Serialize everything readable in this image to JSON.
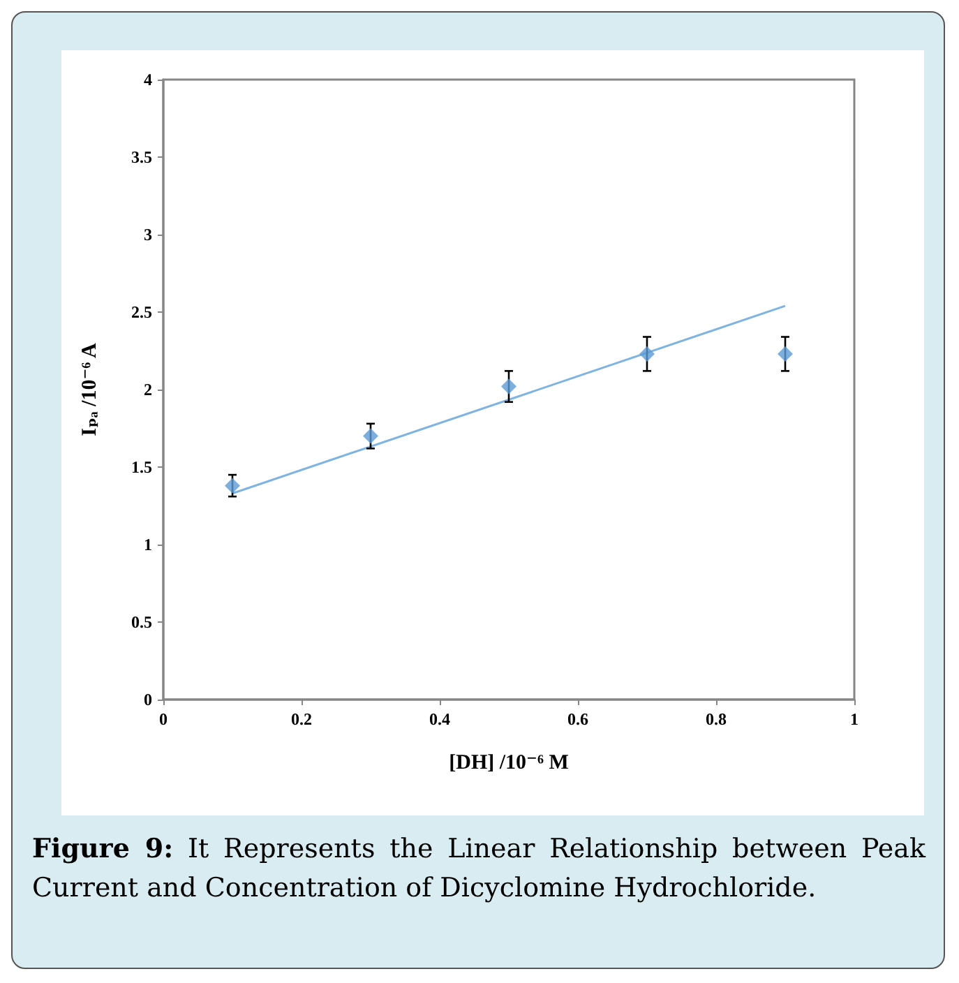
{
  "chart_data": {
    "type": "scatter",
    "xlabel": "[DH] /10⁻⁶ M",
    "ylabel": "Iₚₐ /10⁻⁶ A",
    "annotations": [
      "Figure 9: It Represents the Linear Relationship between Peak Current and Concentration of Dicyclomine Hydrochloride."
    ],
    "x": [
      0.1,
      0.3,
      0.5,
      0.7,
      0.9
    ],
    "series": [
      {
        "color": "#5b9bd5",
        "marker": "diamond",
        "values": [
          1.38,
          1.7,
          2.02,
          2.23,
          2.23
        ],
        "errors": [
          0.07,
          0.08,
          0.1,
          0.11,
          0.11
        ]
      },
      {
        "type": "line",
        "color": "#7fb3e0",
        "marker": "none",
        "x": [
          0.1,
          0.9
        ],
        "values": [
          1.33,
          2.54
        ]
      }
    ],
    "xlim": [
      0,
      1
    ],
    "xticks": [
      0,
      0.2,
      0.4,
      0.6,
      0.8,
      1
    ],
    "ylim": [
      0,
      4
    ],
    "yticks": [
      0,
      0.5,
      1,
      1.5,
      2,
      2.5,
      3,
      3.5,
      4
    ],
    "grid": false
  }
}
